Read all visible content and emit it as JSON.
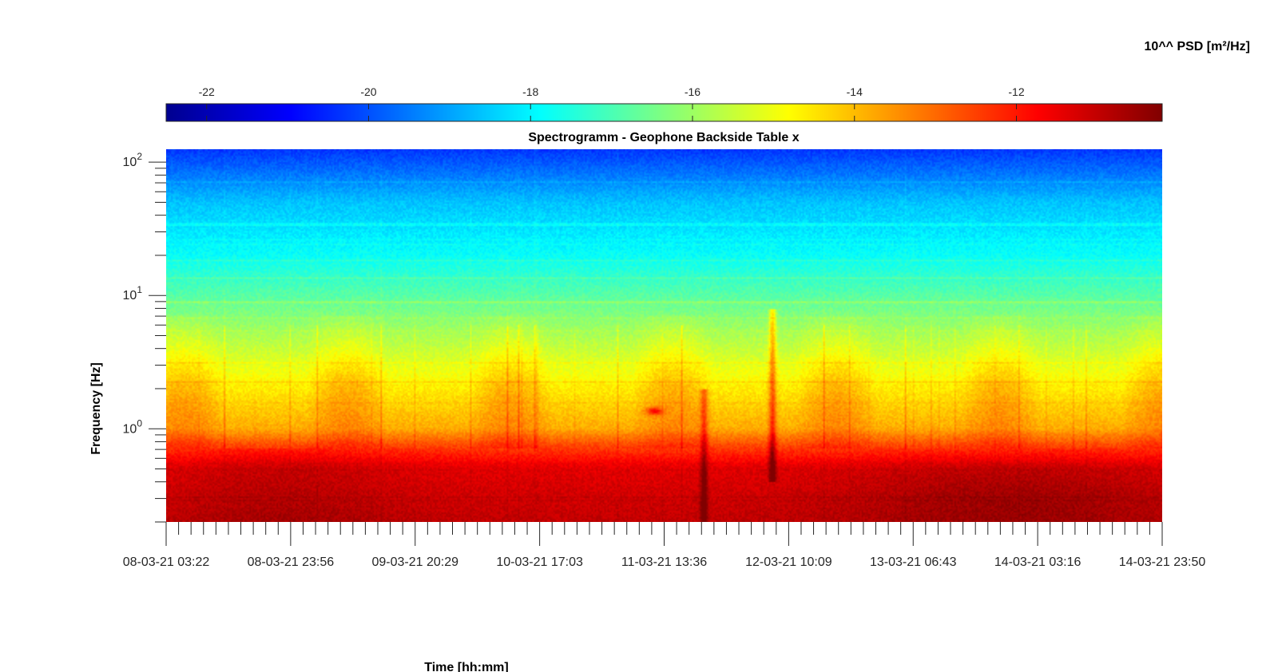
{
  "chart_data": {
    "type": "heatmap",
    "title": "Spectrogramm - Geophone Backside Table x",
    "xlabel": "Time [hh:mm]",
    "ylabel": "Frequency [Hz]",
    "colorbar_label": "10^^ PSD [m²/Hz]",
    "colorbar_ticks": [
      "-22",
      "-20",
      "-18",
      "-16",
      "-14",
      "-12"
    ],
    "colorbar_tick_values": [
      -22,
      -20,
      -18,
      -16,
      -14,
      -12
    ],
    "color_range": [
      -22.5,
      -10.2
    ],
    "colormap": "jet",
    "x_tick_labels": [
      "08-03-21 03:22",
      "08-03-21 23:56",
      "09-03-21 20:29",
      "10-03-21 17:03",
      "11-03-21 13:36",
      "12-03-21 10:09",
      "13-03-21 06:43",
      "14-03-21 03:16",
      "14-03-21 23:50"
    ],
    "y_scale": "log",
    "y_range_hz": [
      0.2,
      125
    ],
    "y_tick_values": [
      1,
      10,
      100
    ],
    "y_tick_labels": [
      {
        "base": "10",
        "exp": "0"
      },
      {
        "base": "10",
        "exp": "1"
      },
      {
        "base": "10",
        "exp": "2"
      }
    ],
    "psd_profile_log10": [
      {
        "freq_hz": 0.2,
        "value": -11.0
      },
      {
        "freq_hz": 0.5,
        "value": -11.4
      },
      {
        "freq_hz": 0.75,
        "value": -12.6
      },
      {
        "freq_hz": 1.0,
        "value": -13.8
      },
      {
        "freq_hz": 2.0,
        "value": -14.6
      },
      {
        "freq_hz": 5.0,
        "value": -15.8
      },
      {
        "freq_hz": 10.0,
        "value": -16.8
      },
      {
        "freq_hz": 20.0,
        "value": -17.8
      },
      {
        "freq_hz": 50.0,
        "value": -18.6
      },
      {
        "freq_hz": 125.0,
        "value": -20.3
      }
    ],
    "features": [
      {
        "time": "13-03-21 to 14-03-21",
        "freq_hz": "0.2-0.6",
        "value": -10.6,
        "note": "strongest low-frequency band"
      },
      {
        "time": "08-03-21",
        "freq_hz": "0.3-0.6",
        "value": -11.0
      },
      {
        "time": "12-03-21",
        "freq_hz": "0.5-8",
        "value": -11.5,
        "note": "broadband vertical streak"
      },
      {
        "time": "11-03-21",
        "freq_hz": "1.3",
        "value": -11.2,
        "note": "short narrow-band event"
      }
    ]
  }
}
